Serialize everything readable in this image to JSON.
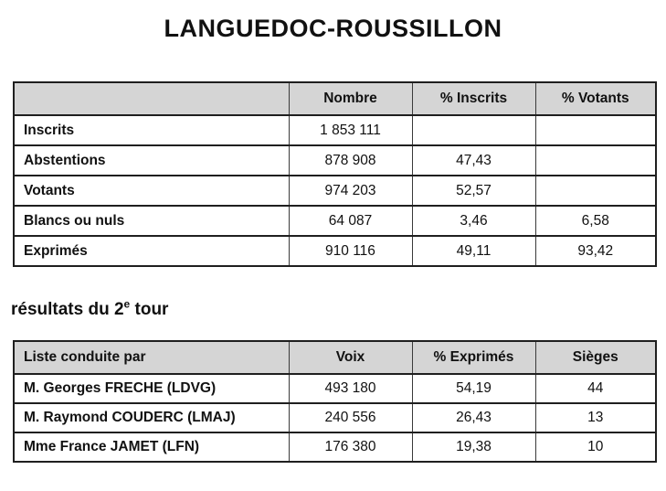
{
  "colors": {
    "background": "#ffffff",
    "text": "#111111",
    "header_bg": "#d5d5d5",
    "border": "#1f1f1f",
    "border_light": "#3a3a3a"
  },
  "page": {
    "title": "LANGUEDOC-ROUSSILLON"
  },
  "section": {
    "prefix": "résultats du 2",
    "superscript": "e",
    "suffix": " tour"
  },
  "participation_table": {
    "headers": [
      "",
      "Nombre",
      "% Inscrits",
      "% Votants"
    ],
    "rows": [
      {
        "cells": [
          "Inscrits",
          "1 853 111",
          "",
          ""
        ]
      },
      {
        "cells": [
          "Abstentions",
          "878 908",
          "47,43",
          ""
        ]
      },
      {
        "cells": [
          "Votants",
          "974 203",
          "52,57",
          ""
        ]
      },
      {
        "cells": [
          "Blancs ou nuls",
          "64 087",
          "3,46",
          "6,58"
        ]
      },
      {
        "cells": [
          "Exprimés",
          "910 116",
          "49,11",
          "93,42"
        ]
      }
    ]
  },
  "results_table": {
    "headers": [
      "Liste conduite par",
      "Voix",
      "% Exprimés",
      "Sièges"
    ],
    "rows": [
      {
        "cells": [
          "M. Georges FRECHE  (LDVG)",
          "493 180",
          "54,19",
          "44"
        ]
      },
      {
        "cells": [
          "M. Raymond COUDERC  (LMAJ)",
          "240 556",
          "26,43",
          "13"
        ]
      },
      {
        "cells": [
          "Mme France JAMET  (LFN)",
          "176 380",
          "19,38",
          "10"
        ]
      }
    ]
  }
}
